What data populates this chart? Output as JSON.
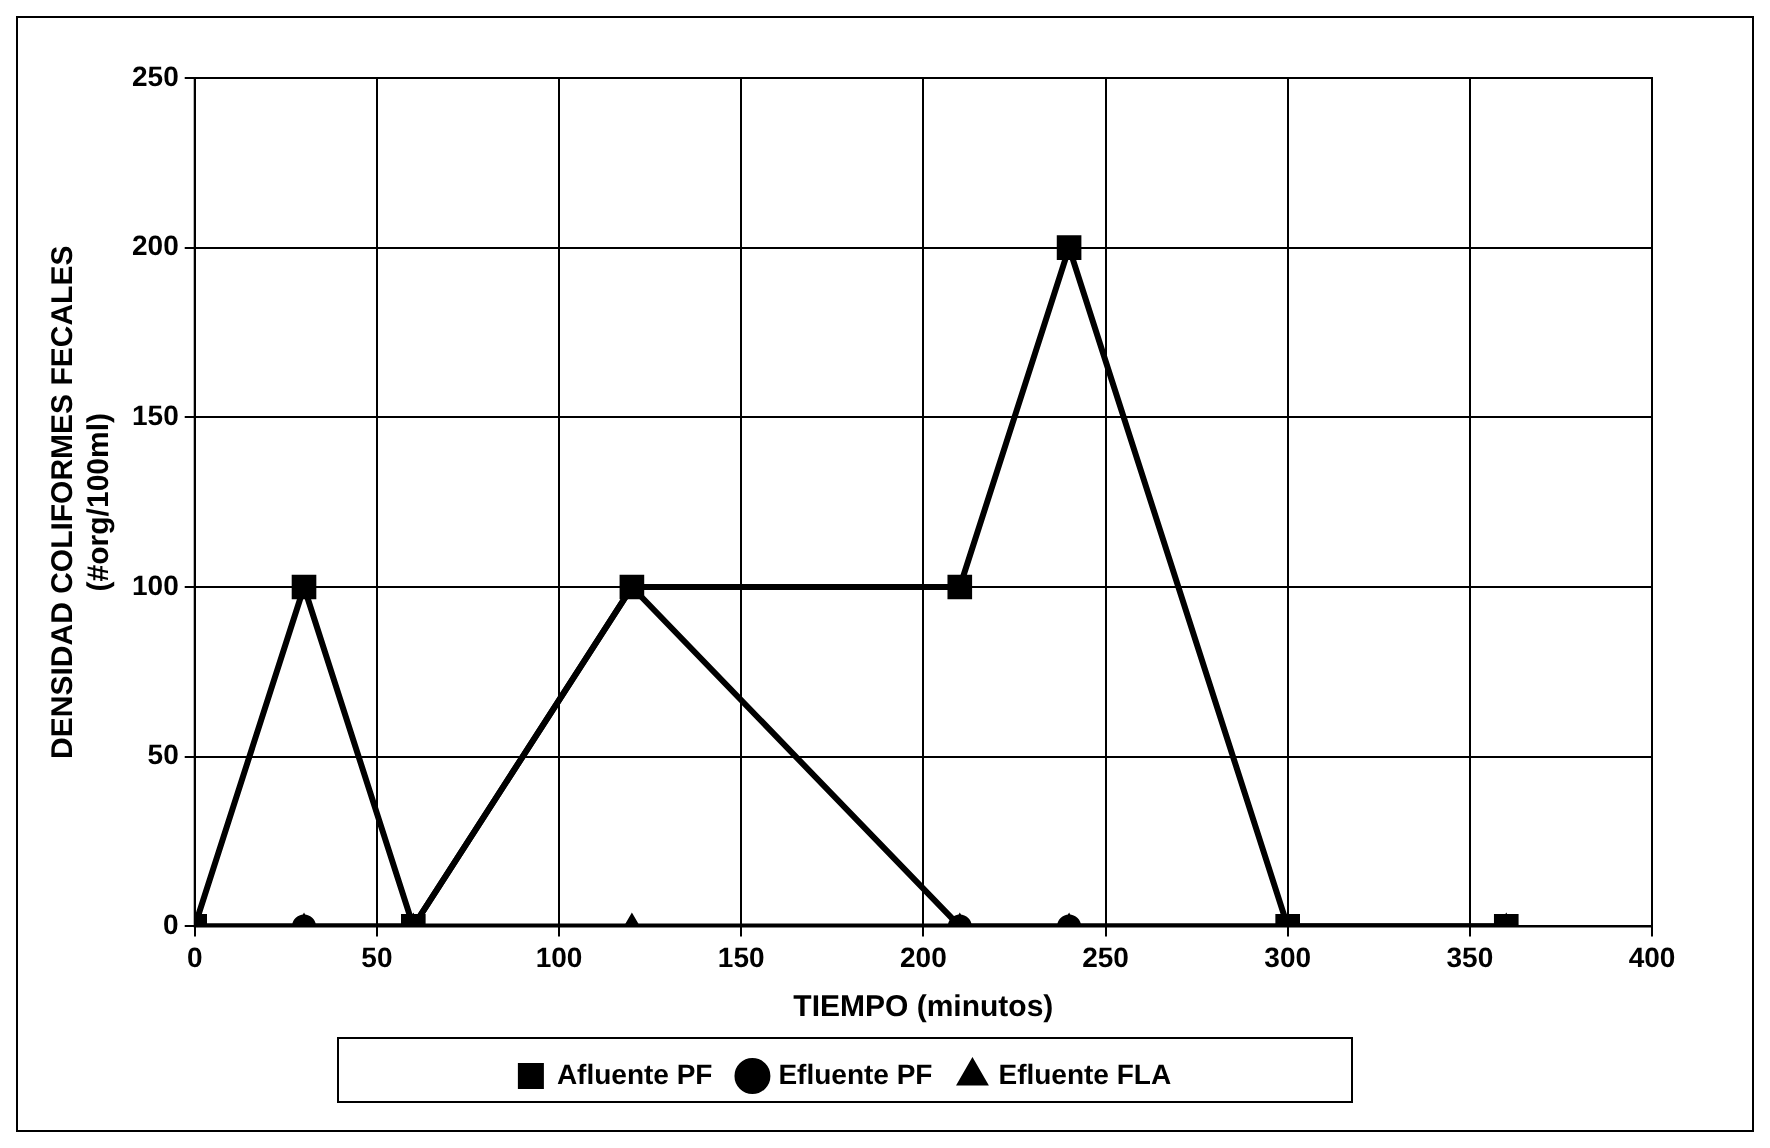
{
  "chart_data": {
    "type": "line",
    "xlabel": "TIEMPO (minutos)",
    "ylabel": "DENSIDAD COLIFORMES FECALES\n(#org/100ml)",
    "x": [
      0,
      30,
      60,
      120,
      210,
      240,
      300,
      360
    ],
    "series": [
      {
        "name": "Afluente PF",
        "color": "#000000",
        "marker": "square",
        "values": [
          0,
          100,
          0,
          100,
          100,
          200,
          0,
          0
        ]
      },
      {
        "name": "Efluente PF",
        "color": "#000000",
        "marker": "circle",
        "values": [
          0,
          0,
          0,
          100,
          0,
          0,
          0,
          0
        ]
      },
      {
        "name": "Efluente FLA",
        "color": "#000000",
        "marker": "triangle",
        "values": [
          0,
          0,
          0,
          0,
          0,
          0,
          0,
          0
        ]
      }
    ],
    "xlim": [
      0,
      400
    ],
    "xticks": [
      0,
      50,
      100,
      150,
      200,
      250,
      300,
      350,
      400
    ],
    "ylim": [
      0,
      250
    ],
    "yticks": [
      0,
      50,
      100,
      150,
      200,
      250
    ],
    "grid": true,
    "legend": "bottom",
    "line_style": "solid"
  }
}
